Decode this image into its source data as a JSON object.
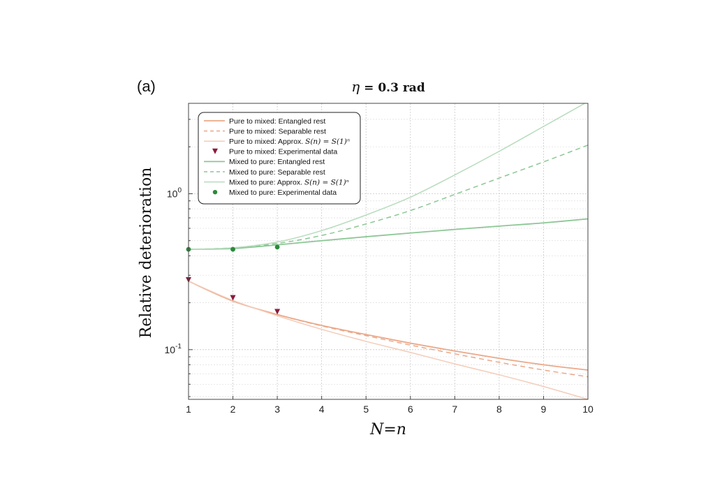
{
  "panel_label": "(a)",
  "title": {
    "symbol": "η",
    "rest": " = 0.3 rad"
  },
  "chart_data": {
    "type": "line",
    "xlabel": "N=n",
    "ylabel": "Relative deterioration",
    "xlim": [
      1,
      10
    ],
    "ylim": [
      0.048,
      3.8
    ],
    "yscale": "log",
    "grid": true,
    "legend_position": "top-left",
    "xticks": [
      1,
      2,
      3,
      4,
      5,
      6,
      7,
      8,
      9,
      10
    ],
    "yticks": [
      {
        "value": 0.1,
        "base": "10",
        "exp": "-1"
      },
      {
        "value": 1,
        "base": "10",
        "exp": "0"
      }
    ],
    "series": [
      {
        "name": "Pure to mixed: Entangled rest",
        "style": "solid",
        "color": "#eba98a",
        "width": 1.8,
        "x": [
          1,
          2,
          3,
          4,
          5,
          6,
          7,
          8,
          9,
          10
        ],
        "y": [
          0.275,
          0.205,
          0.168,
          0.143,
          0.125,
          0.11,
          0.098,
          0.088,
          0.08,
          0.074
        ]
      },
      {
        "name": "Pure to mixed: Separable rest",
        "style": "dashed",
        "color": "#eba98a",
        "width": 1.5,
        "x": [
          1,
          2,
          3,
          4,
          5,
          6,
          7,
          8,
          9,
          10
        ],
        "y": [
          0.275,
          0.205,
          0.168,
          0.142,
          0.123,
          0.107,
          0.094,
          0.083,
          0.074,
          0.067
        ]
      },
      {
        "name": "Pure to mixed: Approx. S(n) = S(1)ⁿ",
        "style": "solid",
        "color": "#f4ccb8",
        "width": 1.5,
        "x": [
          1,
          2,
          3,
          4,
          5,
          6,
          7,
          8,
          9,
          10
        ],
        "y": [
          0.275,
          0.207,
          0.165,
          0.135,
          0.113,
          0.096,
          0.081,
          0.069,
          0.058,
          0.048
        ]
      },
      {
        "name": "Pure to mixed: Experimental data",
        "style": "marker-triangle",
        "color": "#8b1a3c",
        "x": [
          1,
          2,
          3
        ],
        "y": [
          0.28,
          0.215,
          0.175
        ]
      },
      {
        "name": "Mixed to pure: Entangled rest",
        "style": "solid",
        "color": "#8cc795",
        "width": 1.8,
        "x": [
          1,
          2,
          3,
          4,
          5,
          6,
          7,
          8,
          9,
          10
        ],
        "y": [
          0.44,
          0.445,
          0.47,
          0.5,
          0.53,
          0.56,
          0.59,
          0.62,
          0.65,
          0.69
        ]
      },
      {
        "name": "Mixed to pure: Separable rest",
        "style": "dashed",
        "color": "#8cc795",
        "width": 1.5,
        "x": [
          1,
          2,
          3,
          4,
          5,
          6,
          7,
          8,
          9,
          10
        ],
        "y": [
          0.44,
          0.45,
          0.48,
          0.54,
          0.64,
          0.78,
          0.99,
          1.26,
          1.6,
          2.05
        ]
      },
      {
        "name": "Mixed to pure: Approx. S(n) = S(1)ⁿ",
        "style": "solid",
        "color": "#b7dcbc",
        "width": 1.5,
        "x": [
          1,
          2,
          3,
          4,
          5,
          6,
          7,
          8,
          9,
          10
        ],
        "y": [
          0.44,
          0.45,
          0.49,
          0.58,
          0.73,
          0.95,
          1.32,
          1.87,
          2.7,
          3.9
        ]
      },
      {
        "name": "Mixed to pure: Experimental data",
        "style": "marker-circle",
        "color": "#2a8a3a",
        "x": [
          1,
          2,
          3
        ],
        "y": [
          0.44,
          0.44,
          0.455
        ]
      }
    ]
  },
  "legend_entries": [
    {
      "prefix": "Pure to mixed: Entangled rest",
      "math": ""
    },
    {
      "prefix": "Pure to mixed: Separable rest",
      "math": ""
    },
    {
      "prefix": "Pure to mixed: Approx. ",
      "math": "S(n) = S(1)ⁿ"
    },
    {
      "prefix": "Pure to mixed: Experimental data",
      "math": ""
    },
    {
      "prefix": "Mixed to pure: Entangled rest",
      "math": ""
    },
    {
      "prefix": "Mixed to pure: Separable rest",
      "math": ""
    },
    {
      "prefix": "Mixed to pure: Approx. ",
      "math": "S(n) = S(1)ⁿ"
    },
    {
      "prefix": "Mixed to pure: Experimental data",
      "math": ""
    }
  ]
}
